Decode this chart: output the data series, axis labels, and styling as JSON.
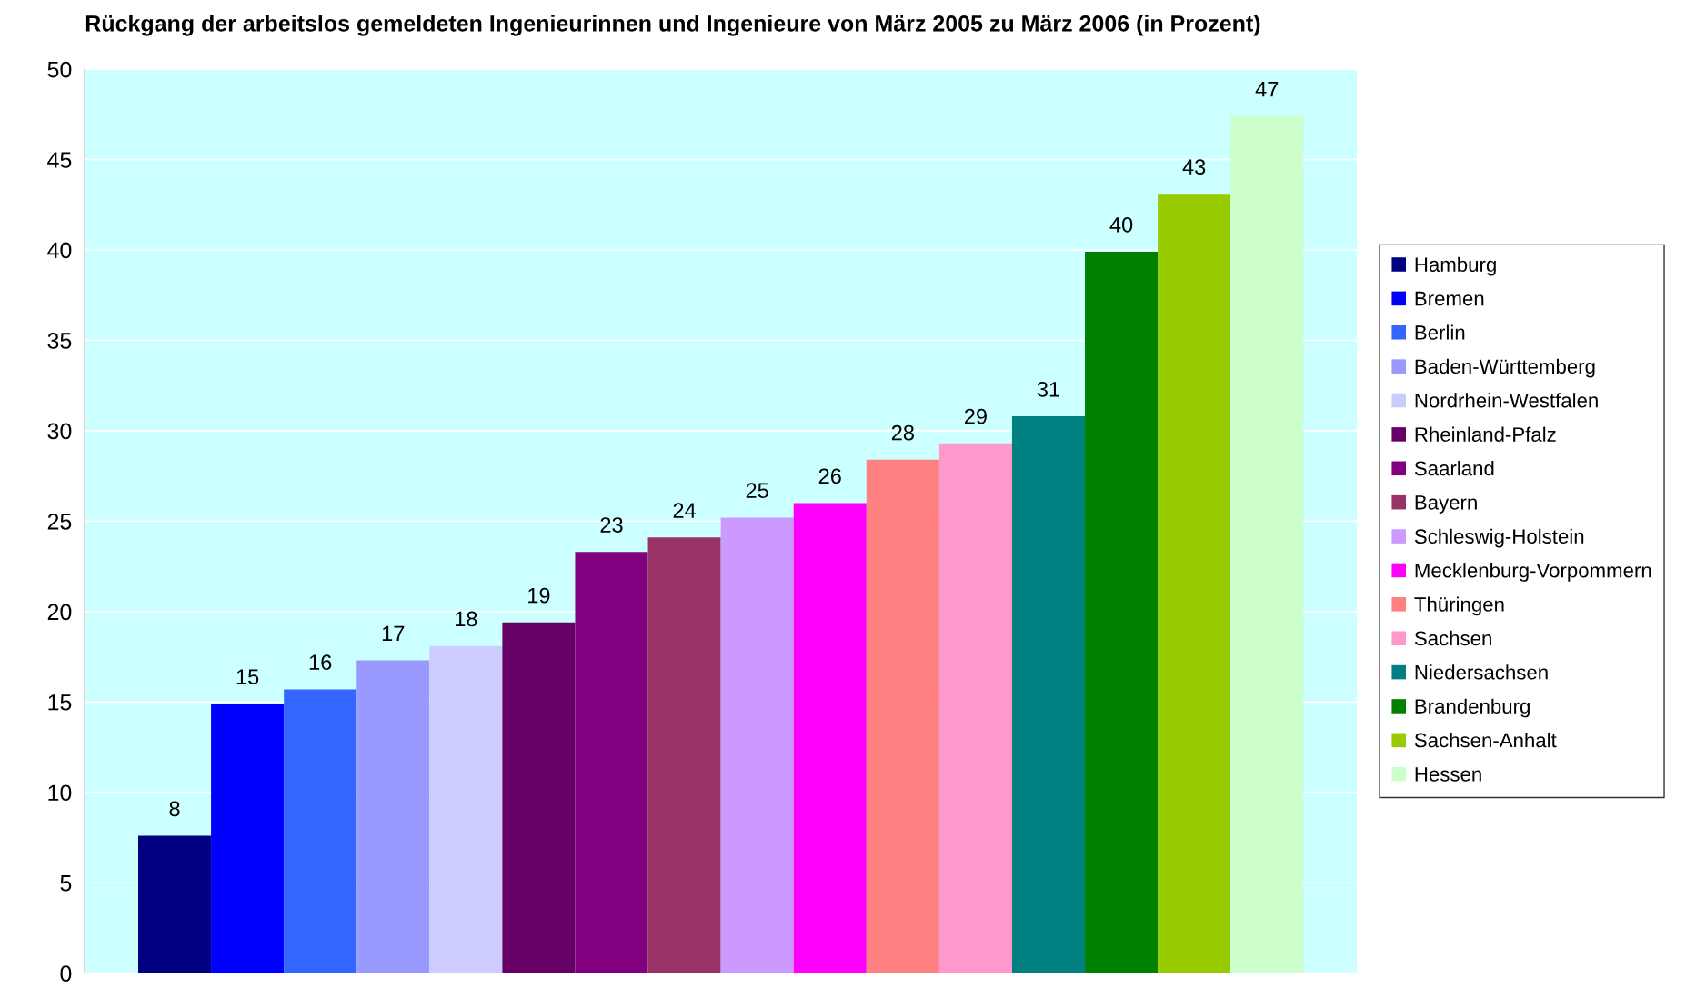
{
  "chart_data": {
    "type": "bar",
    "title": "Rückgang der arbeitslos gemeldeten Ingenieurinnen und Ingenieure von März 2005 zu März 2006 (in Prozent)",
    "categories": [
      null
    ],
    "series": [
      {
        "name": "Hamburg",
        "color": "#000080",
        "values": [
          7.6
        ],
        "value_labels": [
          "8"
        ]
      },
      {
        "name": "Bremen",
        "color": "#0000ff",
        "values": [
          14.9
        ],
        "value_labels": [
          "15"
        ]
      },
      {
        "name": "Berlin",
        "color": "#3366ff",
        "values": [
          15.7
        ],
        "value_labels": [
          "16"
        ]
      },
      {
        "name": "Baden-Württemberg",
        "color": "#9999ff",
        "values": [
          17.3
        ],
        "value_labels": [
          "17"
        ]
      },
      {
        "name": "Nordrhein-Westfalen",
        "color": "#ccccff",
        "values": [
          18.1
        ],
        "value_labels": [
          "18"
        ]
      },
      {
        "name": "Rheinland-Pfalz",
        "color": "#660066",
        "values": [
          19.4
        ],
        "value_labels": [
          "19"
        ]
      },
      {
        "name": "Saarland",
        "color": "#800080",
        "values": [
          23.3
        ],
        "value_labels": [
          "23"
        ]
      },
      {
        "name": "Bayern",
        "color": "#993366",
        "values": [
          24.1
        ],
        "value_labels": [
          "24"
        ]
      },
      {
        "name": "Schleswig-Holstein",
        "color": "#cc99ff",
        "values": [
          25.2
        ],
        "value_labels": [
          "25"
        ]
      },
      {
        "name": "Mecklenburg-Vorpommern",
        "color": "#ff00ff",
        "values": [
          26.0
        ],
        "value_labels": [
          "26"
        ]
      },
      {
        "name": "Thüringen",
        "color": "#ff8080",
        "values": [
          28.4
        ],
        "value_labels": [
          "28"
        ]
      },
      {
        "name": "Sachsen",
        "color": "#ff99cc",
        "values": [
          29.3
        ],
        "value_labels": [
          "29"
        ]
      },
      {
        "name": "Niedersachsen",
        "color": "#008080",
        "values": [
          30.8
        ],
        "value_labels": [
          "31"
        ]
      },
      {
        "name": "Brandenburg",
        "color": "#008000",
        "values": [
          39.9
        ],
        "value_labels": [
          "40"
        ]
      },
      {
        "name": "Sachsen-Anhalt",
        "color": "#99cc00",
        "values": [
          43.1
        ],
        "value_labels": [
          "43"
        ]
      },
      {
        "name": "Hessen",
        "color": "#ccffcc",
        "values": [
          47.4
        ],
        "value_labels": [
          "47"
        ]
      }
    ],
    "ylim": [
      0,
      50
    ],
    "yticks": [
      0,
      5,
      10,
      15,
      20,
      25,
      30,
      35,
      40,
      45,
      50
    ],
    "grid": "y",
    "legend": "right"
  }
}
